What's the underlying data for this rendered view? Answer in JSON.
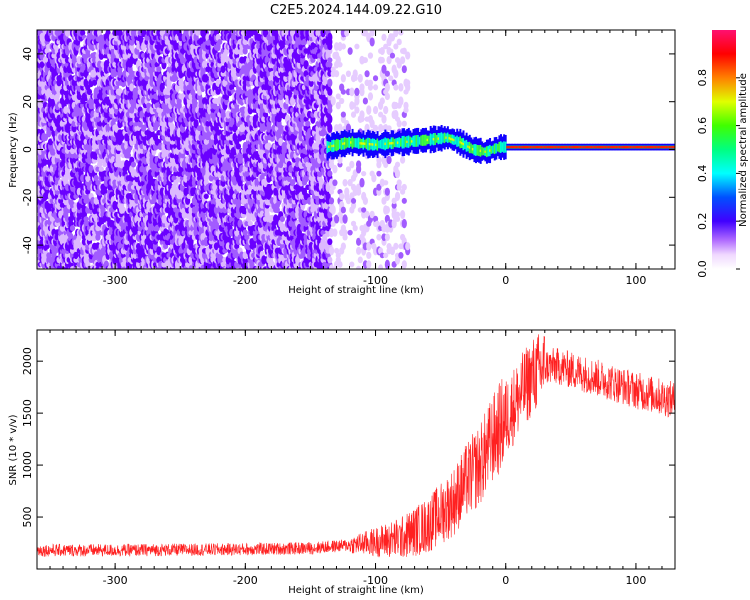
{
  "figure": {
    "title": "C2E5.2024.144.09.22.G10"
  },
  "chart_data": [
    {
      "type": "heatmap",
      "xlabel": "Height of straight line (km)",
      "ylabel": "Frequency (Hz)",
      "xlim": [
        -360,
        130
      ],
      "ylim": [
        -50,
        50
      ],
      "x_ticks": [
        -300,
        -200,
        -100,
        0,
        100
      ],
      "y_ticks": [
        -40,
        -20,
        0,
        20,
        40
      ],
      "colorbar": {
        "label": "Normalized spectral amplitude",
        "range": [
          0,
          1
        ],
        "ticks": [
          0.0,
          0.2,
          0.4,
          0.6,
          0.8
        ],
        "colormap": [
          "#ffffff",
          "#f2e2ff",
          "#d6a8ff",
          "#8a2be2",
          "#0000ff",
          "#00ffff",
          "#00ff00",
          "#ffff00",
          "#ff0000",
          "#ff1493"
        ]
      },
      "features": {
        "noise_region_x": [
          -360,
          -135
        ],
        "sparse_region_x": [
          -135,
          -75
        ],
        "signal_start_x": -137,
        "signal_track": [
          {
            "x": -137,
            "y": 1
          },
          {
            "x": -120,
            "y": 3
          },
          {
            "x": -100,
            "y": 2
          },
          {
            "x": -80,
            "y": 3
          },
          {
            "x": -60,
            "y": 4
          },
          {
            "x": -45,
            "y": 5
          },
          {
            "x": -35,
            "y": 3
          },
          {
            "x": -25,
            "y": 0
          },
          {
            "x": -15,
            "y": -1
          },
          {
            "x": -5,
            "y": 1
          },
          {
            "x": 0,
            "y": 1
          },
          {
            "x": 20,
            "y": 1
          },
          {
            "x": 60,
            "y": 1
          },
          {
            "x": 100,
            "y": 1
          },
          {
            "x": 130,
            "y": 1
          }
        ]
      }
    },
    {
      "type": "line",
      "xlabel": "Height of straight line (km)",
      "ylabel": "SNR (10 * v/v)",
      "xlim": [
        -360,
        130
      ],
      "ylim": [
        0,
        2300
      ],
      "x_ticks": [
        -300,
        -200,
        -100,
        0,
        100
      ],
      "y_ticks": [
        500,
        1000,
        1500,
        2000
      ],
      "series": [
        {
          "color": "#ff0000",
          "trend": [
            {
              "x": -360,
              "y": 180
            },
            {
              "x": -300,
              "y": 180
            },
            {
              "x": -200,
              "y": 190
            },
            {
              "x": -150,
              "y": 200
            },
            {
              "x": -120,
              "y": 230
            },
            {
              "x": -100,
              "y": 260
            },
            {
              "x": -80,
              "y": 300
            },
            {
              "x": -60,
              "y": 420
            },
            {
              "x": -40,
              "y": 650
            },
            {
              "x": -30,
              "y": 850
            },
            {
              "x": -20,
              "y": 1000
            },
            {
              "x": -10,
              "y": 1250
            },
            {
              "x": 0,
              "y": 1450
            },
            {
              "x": 10,
              "y": 1650
            },
            {
              "x": 20,
              "y": 1850
            },
            {
              "x": 30,
              "y": 1950
            },
            {
              "x": 40,
              "y": 1950
            },
            {
              "x": 60,
              "y": 1880
            },
            {
              "x": 80,
              "y": 1800
            },
            {
              "x": 100,
              "y": 1720
            },
            {
              "x": 130,
              "y": 1620
            }
          ]
        }
      ]
    }
  ]
}
